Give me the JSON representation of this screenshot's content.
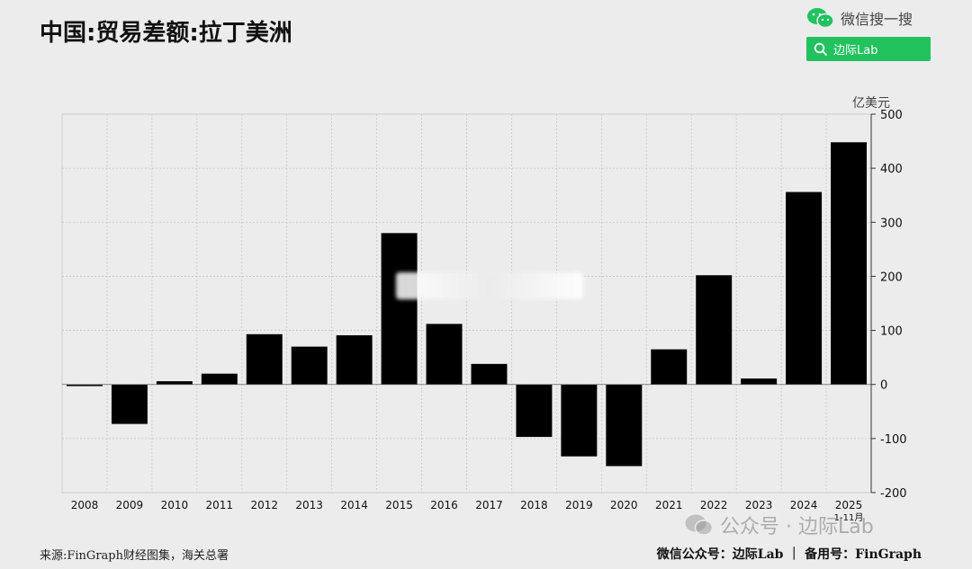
{
  "header": {
    "title": "中国:贸易差额:拉丁美洲"
  },
  "wechat_search": {
    "brand_text": "微信搜一搜",
    "query": "边际Lab",
    "accent_color": "#22c25f",
    "icons": [
      "wechat-logo-icon",
      "search-icon"
    ]
  },
  "footer": {
    "source": "来源:FinGraph财经图集，海关总署",
    "credit": "微信公众号：边际Lab ｜ 备用号：FinGraph"
  },
  "watermark": {
    "text": "公众号 · 边际Lab"
  },
  "chart_data": {
    "type": "bar",
    "title": "中国:贸易差额:拉丁美洲",
    "unit_label": "亿美元",
    "categories": [
      "2008",
      "2009",
      "2010",
      "2011",
      "2012",
      "2013",
      "2014",
      "2015",
      "2016",
      "2017",
      "2018",
      "2019",
      "2020",
      "2021",
      "2022",
      "2023",
      "2024",
      "2025"
    ],
    "category_notes": {
      "2025": "1-11月"
    },
    "values": [
      -3,
      -73,
      6,
      20,
      93,
      70,
      91,
      280,
      112,
      38,
      -97,
      -133,
      -151,
      65,
      202,
      11,
      356,
      448
    ],
    "ylim": [
      -200,
      500
    ],
    "y_ticks": [
      500,
      400,
      300,
      200,
      100,
      0,
      -100,
      -200
    ],
    "y_axis_side": "right",
    "grid": true,
    "bar_color": "#000000"
  }
}
